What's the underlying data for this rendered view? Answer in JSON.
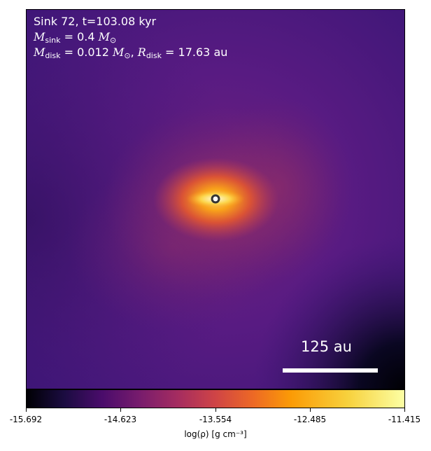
{
  "panel": {
    "title_line": "Sink 72, t=103.08 kyr",
    "m_sink": {
      "symbol": "M",
      "sub": "sink",
      "expr": " = 0.4 ",
      "unit_symbol": "M",
      "unit_sub": "⊙"
    },
    "m_disk": {
      "symbol": "M",
      "sub": "disk",
      "expr": " = 0.012 ",
      "unit_symbol": "M",
      "unit_sub": "⊙"
    },
    "r_disk": {
      "symbol": "R",
      "sub": "disk",
      "expr": " = 17.63 au"
    },
    "separator": ", ",
    "scale_bar_label": "125 au"
  },
  "colorbar": {
    "colormap": "inferno",
    "tick_labels": [
      "-15.692",
      "-14.623",
      "-13.554",
      "-12.485",
      "-11.415"
    ],
    "title": "log(ρ) [g cm⁻³]"
  },
  "colors": {
    "background_field": "#4a1a80",
    "disk_core": "#fffbe0",
    "sink_marker_fill": "#ffffff",
    "sink_marker_edge": "#333333"
  }
}
